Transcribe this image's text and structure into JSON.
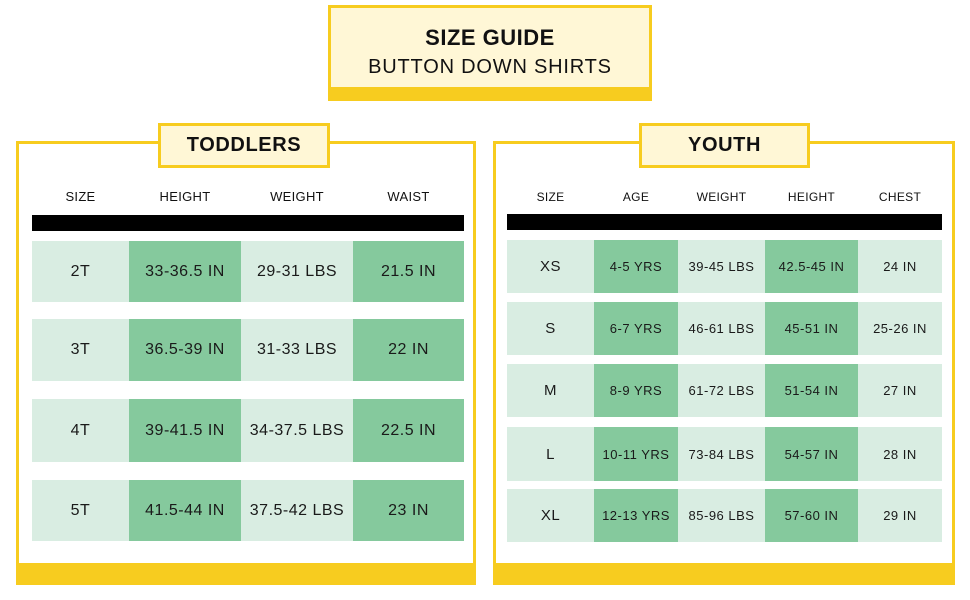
{
  "title": {
    "main": "SIZE GUIDE",
    "subtitle": "BUTTON DOWN SHIRTS"
  },
  "toddlers": {
    "label": "TODDLERS",
    "headers": [
      "SIZE",
      "HEIGHT",
      "WEIGHT",
      "WAIST"
    ],
    "rows": [
      [
        "2T",
        "33-36.5 IN",
        "29-31 LBS",
        "21.5 IN"
      ],
      [
        "3T",
        "36.5-39 IN",
        "31-33 LBS",
        "22 IN"
      ],
      [
        "4T",
        "39-41.5 IN",
        "34-37.5 LBS",
        "22.5 IN"
      ],
      [
        "5T",
        "41.5-44 IN",
        "37.5-42 LBS",
        "23 IN"
      ]
    ]
  },
  "youth": {
    "label": "YOUTH",
    "headers": [
      "SIZE",
      "AGE",
      "WEIGHT",
      "HEIGHT",
      "CHEST"
    ],
    "rows": [
      [
        "XS",
        "4-5 YRS",
        "39-45 LBS",
        "42.5-45 IN",
        "24 IN"
      ],
      [
        "S",
        "6-7 YRS",
        "46-61 LBS",
        "45-51 IN",
        "25-26 IN"
      ],
      [
        "M",
        "8-9 YRS",
        "61-72 LBS",
        "51-54 IN",
        "27 IN"
      ],
      [
        "L",
        "10-11 YRS",
        "73-84 LBS",
        "54-57 IN",
        "28 IN"
      ],
      [
        "XL",
        "12-13 YRS",
        "85-96 LBS",
        "57-60 IN",
        "29 IN"
      ]
    ]
  },
  "colors": {
    "accent_yellow": "#f7cc1f",
    "cream": "#fff7d6",
    "cell_light": "#d9ede2",
    "cell_dark": "#85c99d"
  }
}
